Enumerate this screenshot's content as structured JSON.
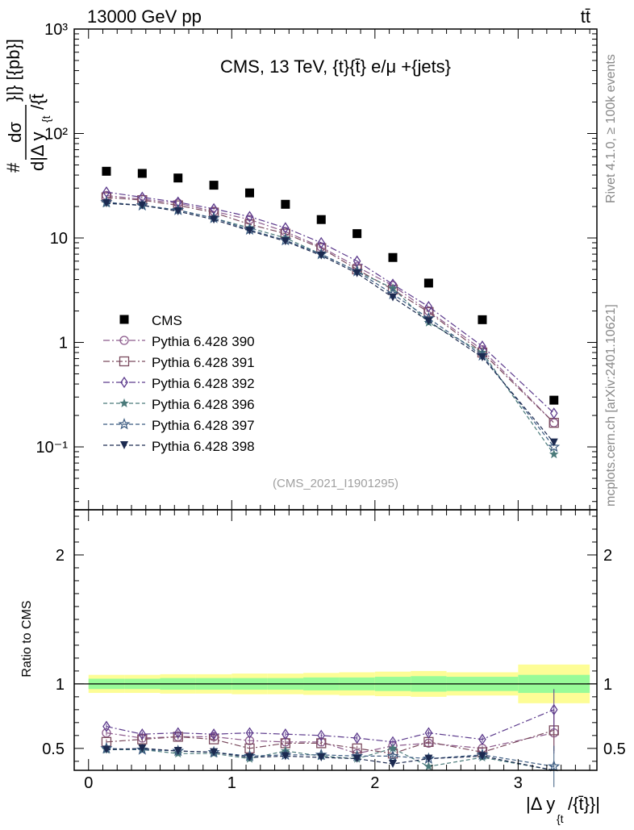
{
  "header": {
    "left": "13000 GeV pp",
    "right": "tt̄"
  },
  "side_labels": {
    "rivet": "Rivet 4.1.0, ≥ 100k events",
    "mcplots": "mcplots.cern.ch [arXiv:2401.10621]"
  },
  "chart_data": [
    {
      "type": "scatter",
      "title": "CMS, 13 TeV, {t}{t̄} e/μ +{jets}",
      "watermark": "(CMS_2021_I1901295)",
      "ylabel": "# dσ / d|Δ y_{t/t̄}| [{pb}]",
      "ylabel_parts": {
        "num": "dσ",
        "den": "d|Δ y",
        "sub": "{t",
        "tail": "/{t̄",
        "pre": "#",
        "post": "}|} [{pb}]"
      },
      "yscale": "log",
      "ylim": [
        0.025,
        1000
      ],
      "xlim": [
        -0.1,
        3.55
      ],
      "yticks": [
        {
          "v": 0.1,
          "label": "10⁻¹"
        },
        {
          "v": 1,
          "label": "1"
        },
        {
          "v": 10,
          "label": "10"
        },
        {
          "v": 100,
          "label": "10²"
        },
        {
          "v": 1000,
          "label": "10³"
        }
      ],
      "x": [
        0.125,
        0.375,
        0.625,
        0.875,
        1.125,
        1.375,
        1.625,
        1.875,
        2.125,
        2.375,
        2.75,
        3.25
      ],
      "series": [
        {
          "name": "CMS",
          "marker": "square",
          "color": "#000000",
          "values": [
            43.5,
            41.5,
            37.5,
            32.0,
            27.0,
            21.0,
            15.0,
            11.0,
            6.5,
            3.7,
            1.65,
            0.28
          ]
        },
        {
          "name": "Pythia 6.428 390",
          "marker": "circle",
          "color": "#8c5a8c",
          "values": [
            25.5,
            23.5,
            21.5,
            18.0,
            15.0,
            11.5,
            8.2,
            5.3,
            3.5,
            2.0,
            0.85,
            0.17
          ]
        },
        {
          "name": "Pythia 6.428 391",
          "marker": "open-square",
          "color": "#7a4a5e",
          "values": [
            24.5,
            23.0,
            20.5,
            17.5,
            13.5,
            11.0,
            8.0,
            5.0,
            3.2,
            1.95,
            0.8,
            0.17
          ]
        },
        {
          "name": "Pythia 6.428 392",
          "marker": "diamond",
          "color": "#5c3a8c",
          "values": [
            27.5,
            24.5,
            22.0,
            19.0,
            16.0,
            12.5,
            9.0,
            6.0,
            3.6,
            2.2,
            0.92,
            0.21
          ]
        },
        {
          "name": "Pythia 6.428 396",
          "marker": "star",
          "color": "#4a7a7a",
          "values": [
            21.5,
            20.5,
            18.5,
            15.5,
            12.5,
            10.0,
            7.0,
            4.8,
            3.3,
            1.55,
            0.8,
            0.085
          ]
        },
        {
          "name": "Pythia 6.428 397",
          "marker": "open-star",
          "color": "#3a5a80",
          "values": [
            22.0,
            20.5,
            18.5,
            15.5,
            12.0,
            9.5,
            7.0,
            4.8,
            2.9,
            1.7,
            0.75,
            0.1
          ]
        },
        {
          "name": "Pythia 6.428 398",
          "marker": "triangle-down",
          "color": "#1c2a50",
          "values": [
            21.5,
            20.5,
            18.0,
            15.0,
            11.7,
            9.3,
            6.8,
            4.6,
            2.7,
            1.6,
            0.72,
            0.11
          ]
        }
      ]
    },
    {
      "type": "scatter",
      "ylabel": "Ratio to CMS",
      "xlabel": "|Δ y_{t}/{t̄}}|",
      "xlabel_parts": {
        "main": "|Δ y",
        "sub": "{t",
        "tail": "/{t̄}}|"
      },
      "ylim": [
        0.33,
        2.35
      ],
      "xlim": [
        -0.1,
        3.55
      ],
      "yticks": [
        0.5,
        1,
        2
      ],
      "xticks": [
        0,
        1,
        2,
        3
      ],
      "band_edges": [
        0,
        0.25,
        0.5,
        0.75,
        1.0,
        1.25,
        1.5,
        1.75,
        2.0,
        2.25,
        2.5,
        3.0,
        3.5
      ],
      "band_inner": [
        [
          0.96,
          1.04
        ],
        [
          0.96,
          1.04
        ],
        [
          0.955,
          1.045
        ],
        [
          0.955,
          1.045
        ],
        [
          0.955,
          1.045
        ],
        [
          0.955,
          1.045
        ],
        [
          0.95,
          1.05
        ],
        [
          0.95,
          1.05
        ],
        [
          0.945,
          1.055
        ],
        [
          0.94,
          1.06
        ],
        [
          0.945,
          1.055
        ],
        [
          0.93,
          1.07
        ]
      ],
      "band_outer": [
        [
          0.93,
          1.07
        ],
        [
          0.93,
          1.07
        ],
        [
          0.925,
          1.075
        ],
        [
          0.925,
          1.075
        ],
        [
          0.92,
          1.08
        ],
        [
          0.92,
          1.08
        ],
        [
          0.915,
          1.085
        ],
        [
          0.91,
          1.09
        ],
        [
          0.905,
          1.095
        ],
        [
          0.9,
          1.1
        ],
        [
          0.91,
          1.09
        ],
        [
          0.85,
          1.15
        ]
      ],
      "series": [
        {
          "name": "Pythia 6.428 390",
          "values": [
            0.62,
            0.58,
            0.59,
            0.59,
            0.56,
            0.55,
            0.55,
            0.46,
            0.52,
            0.54,
            0.5,
            0.62
          ]
        },
        {
          "name": "Pythia 6.428 391",
          "values": [
            0.55,
            0.57,
            0.59,
            0.57,
            0.5,
            0.54,
            0.54,
            0.5,
            0.46,
            0.55,
            0.47,
            0.64
          ]
        },
        {
          "name": "Pythia 6.428 392",
          "values": [
            0.67,
            0.61,
            0.62,
            0.61,
            0.62,
            0.61,
            0.6,
            0.58,
            0.55,
            0.62,
            0.57,
            0.8
          ]
        },
        {
          "name": "Pythia 6.428 396",
          "values": [
            0.49,
            0.49,
            0.46,
            0.46,
            0.42,
            0.48,
            0.44,
            0.42,
            0.5,
            0.36,
            0.43,
            0.3
          ]
        },
        {
          "name": "Pythia 6.428 397",
          "values": [
            0.5,
            0.49,
            0.48,
            0.47,
            0.44,
            0.45,
            0.45,
            0.44,
            0.44,
            0.42,
            0.45,
            0.36
          ]
        },
        {
          "name": "Pythia 6.428 398",
          "values": [
            0.49,
            0.5,
            0.48,
            0.47,
            0.43,
            0.44,
            0.43,
            0.42,
            0.38,
            0.42,
            0.44,
            0.32
          ]
        }
      ]
    }
  ]
}
